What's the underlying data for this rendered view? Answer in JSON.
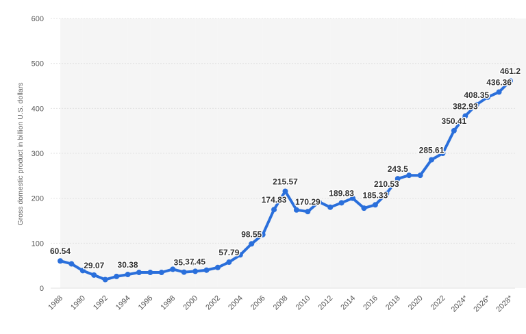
{
  "chart_data": {
    "type": "line",
    "title": "",
    "xlabel": "",
    "ylabel": "Gross domestic product in billion U.S. dollars",
    "ylim": [
      0,
      600
    ],
    "yticks": [
      "0",
      "100",
      "200",
      "300",
      "400",
      "500",
      "600"
    ],
    "x_tick_labels": [
      "1988",
      "1990",
      "1992",
      "1994",
      "1996",
      "1998",
      "2000",
      "2002",
      "2004",
      "2006",
      "2008",
      "2010",
      "2012",
      "2014",
      "2016",
      "2018",
      "2020",
      "2022",
      "2024*",
      "2026*",
      "2028*"
    ],
    "grid": true,
    "alternating_column_shading": true,
    "line_color": "#2a6fdb",
    "x": [
      "1988",
      "1989",
      "1990",
      "1991",
      "1992",
      "1993",
      "1994",
      "1995",
      "1996",
      "1997",
      "1998",
      "1999",
      "2000",
      "2001",
      "2002",
      "2003",
      "2004",
      "2005",
      "2006",
      "2007",
      "2008",
      "2009",
      "2010",
      "2011",
      "2012",
      "2013",
      "2014",
      "2015",
      "2016",
      "2017",
      "2018",
      "2019",
      "2020",
      "2021",
      "2022",
      "2023",
      "2024*",
      "2025*",
      "2026*",
      "2027*",
      "2028*"
    ],
    "values": [
      60.54,
      54,
      39,
      29.07,
      19,
      26,
      30.38,
      35,
      35,
      35,
      42,
      35.64,
      37.45,
      40,
      46,
      57.79,
      74,
      98.55,
      119,
      174.83,
      215.57,
      174,
      170.29,
      192,
      180,
      189.83,
      200,
      178,
      185.33,
      210.53,
      243.5,
      251,
      251,
      285.61,
      300,
      350.41,
      382.93,
      408.35,
      425,
      436.36,
      461.2
    ],
    "data_labels": [
      {
        "x": "1988",
        "text": "60.54"
      },
      {
        "x": "1991",
        "text": "29.07"
      },
      {
        "x": "1994",
        "text": "30.38"
      },
      {
        "x": "1999",
        "text": "35.64"
      },
      {
        "x": "2000",
        "text": "37.45"
      },
      {
        "x": "2003",
        "text": "57.79"
      },
      {
        "x": "2005",
        "text": "98.55"
      },
      {
        "x": "2007",
        "text": "174.83"
      },
      {
        "x": "2008",
        "text": "215.57"
      },
      {
        "x": "2010",
        "text": "170.29"
      },
      {
        "x": "2013",
        "text": "189.83"
      },
      {
        "x": "2016",
        "text": "185.33"
      },
      {
        "x": "2017",
        "text": "210.53"
      },
      {
        "x": "2018",
        "text": "243.5"
      },
      {
        "x": "2021",
        "text": "285.61"
      },
      {
        "x": "2023",
        "text": "350.41"
      },
      {
        "x": "2024*",
        "text": "382.93"
      },
      {
        "x": "2025*",
        "text": "408.35"
      },
      {
        "x": "2027*",
        "text": "436.36"
      },
      {
        "x": "2028*",
        "text": "461.2"
      }
    ]
  }
}
